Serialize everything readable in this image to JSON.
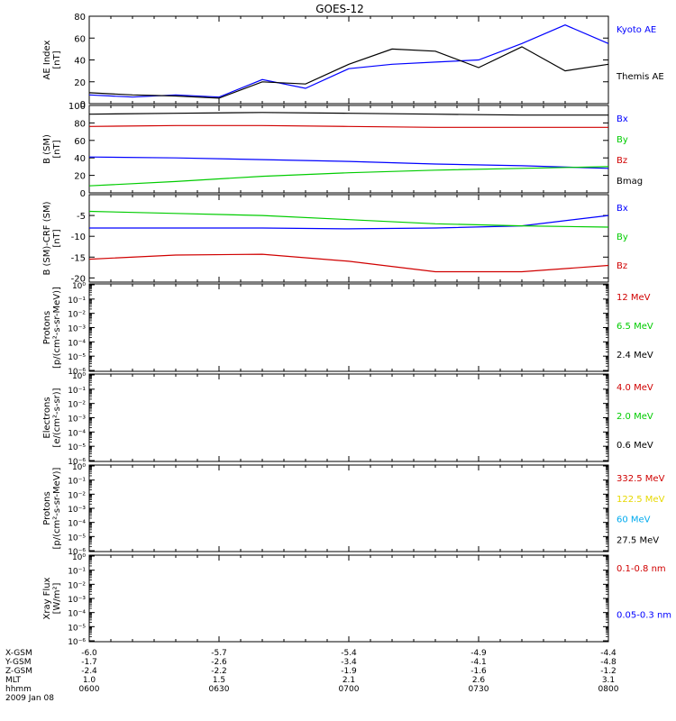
{
  "title": "GOES-12",
  "colors": {
    "black": "#000000",
    "blue": "#0000ff",
    "red": "#d00000",
    "green": "#00cc00",
    "yellow": "#e6d800",
    "cyan": "#00aaee"
  },
  "chart_data": [
    {
      "type": "line",
      "ylabel": "AE Index\n[nT]",
      "ylim": [
        0,
        80
      ],
      "yticks": [
        "0",
        "20",
        "40",
        "60",
        "80"
      ],
      "yscale": "linear",
      "x": [
        "0600",
        "0610",
        "0620",
        "0630",
        "0640",
        "0650",
        "0700",
        "0710",
        "0720",
        "0730",
        "0740",
        "0750",
        "0800"
      ],
      "series": [
        {
          "name": "Kyoto AE",
          "color": "blue",
          "values": [
            8,
            6,
            8,
            6,
            22,
            14,
            32,
            36,
            38,
            40,
            55,
            72,
            55
          ]
        },
        {
          "name": "Themis AE",
          "color": "black",
          "values": [
            10,
            8,
            7,
            5,
            20,
            18,
            36,
            50,
            48,
            33,
            52,
            30,
            36
          ]
        }
      ]
    },
    {
      "type": "line",
      "ylabel": "B (SM)\n[nT]",
      "ylim": [
        0,
        100
      ],
      "yticks": [
        "0",
        "20",
        "40",
        "60",
        "80",
        "100"
      ],
      "yscale": "linear",
      "x": [
        "0600",
        "0620",
        "0640",
        "0700",
        "0720",
        "0740",
        "0800"
      ],
      "series": [
        {
          "name": "Bx",
          "color": "blue",
          "values": [
            41,
            40,
            38,
            36,
            33,
            31,
            28
          ]
        },
        {
          "name": "By",
          "color": "green",
          "values": [
            8,
            13,
            19,
            23,
            26,
            28,
            30
          ]
        },
        {
          "name": "Bz",
          "color": "red",
          "values": [
            76,
            77,
            77,
            76,
            75,
            75,
            75
          ]
        },
        {
          "name": "Bmag",
          "color": "black",
          "values": [
            90,
            91,
            92,
            91,
            90,
            89,
            89
          ]
        }
      ]
    },
    {
      "type": "line",
      "ylabel": "B (SM)-CRF (SM)\n[nT]",
      "ylim": [
        -21,
        0
      ],
      "yticks": [
        "-20",
        "-15",
        "-10",
        "-5"
      ],
      "ytick_values": [
        -20,
        -15,
        -10,
        -5
      ],
      "yscale": "linear",
      "x": [
        "0600",
        "0620",
        "0640",
        "0700",
        "0720",
        "0740",
        "0800"
      ],
      "series": [
        {
          "name": "Bx",
          "color": "blue",
          "values": [
            -8,
            -8,
            -8,
            -8.2,
            -8,
            -7.5,
            -5
          ]
        },
        {
          "name": "By",
          "color": "green",
          "values": [
            -4,
            -4.5,
            -5,
            -6,
            -7,
            -7.5,
            -7.8
          ]
        },
        {
          "name": "Bz",
          "color": "red",
          "values": [
            -15.5,
            -14.5,
            -14.3,
            -16,
            -18.5,
            -18.5,
            -17
          ]
        }
      ]
    },
    {
      "type": "line",
      "ylabel": "Protons\n[p/(cm²-s-sr-MeV)]",
      "yscale": "log",
      "yticks": [
        "10⁻⁶",
        "10⁻⁵",
        "10⁻⁴",
        "10⁻³",
        "10⁻²",
        "10⁻¹",
        "10⁰"
      ],
      "series": [
        {
          "name": "12 MeV",
          "color": "red"
        },
        {
          "name": "6.5 MeV",
          "color": "green"
        },
        {
          "name": "2.4 MeV",
          "color": "black"
        }
      ]
    },
    {
      "type": "line",
      "ylabel": "Electrons\n[e/(cm²-s-sr)]",
      "yscale": "log",
      "yticks": [
        "10⁻⁶",
        "10⁻⁵",
        "10⁻⁴",
        "10⁻³",
        "10⁻²",
        "10⁻¹",
        "10⁰"
      ],
      "series": [
        {
          "name": "4.0 MeV",
          "color": "red"
        },
        {
          "name": "2.0 MeV",
          "color": "green"
        },
        {
          "name": "0.6 MeV",
          "color": "black"
        }
      ]
    },
    {
      "type": "line",
      "ylabel": "Protons\n[p/(cm²-s-sr-MeV)]",
      "yscale": "log",
      "yticks": [
        "10⁻⁶",
        "10⁻⁵",
        "10⁻⁴",
        "10⁻³",
        "10⁻²",
        "10⁻¹",
        "10⁰"
      ],
      "series": [
        {
          "name": "332.5 MeV",
          "color": "red"
        },
        {
          "name": "122.5 MeV",
          "color": "yellow"
        },
        {
          "name": "60 MeV",
          "color": "cyan"
        },
        {
          "name": "27.5 MeV",
          "color": "black"
        }
      ]
    },
    {
      "type": "line",
      "ylabel": "Xray Flux\n[W/m²]",
      "yscale": "log",
      "yticks": [
        "10⁻⁶",
        "10⁻⁵",
        "10⁻⁴",
        "10⁻³",
        "10⁻²",
        "10⁻¹",
        "10⁰"
      ],
      "series": [
        {
          "name": "0.1-0.8 nm",
          "color": "red"
        },
        {
          "name": "0.05-0.3 nm",
          "color": "blue"
        }
      ]
    }
  ],
  "xaxis": {
    "rows": [
      {
        "label": "X-GSM",
        "values": [
          "-6.0",
          "-5.7",
          "-5.4",
          "-4.9",
          "-4.4"
        ]
      },
      {
        "label": "Y-GSM",
        "values": [
          "-1.7",
          "-2.6",
          "-3.4",
          "-4.1",
          "-4.8"
        ]
      },
      {
        "label": "Z-GSM",
        "values": [
          "-2.4",
          "-2.2",
          "-1.9",
          "-1.6",
          "-1.2"
        ]
      },
      {
        "label": "MLT",
        "values": [
          "1.0",
          "1.5",
          "2.1",
          "2.6",
          "3.1"
        ]
      },
      {
        "label": "hhmm",
        "values": [
          "0600",
          "0630",
          "0700",
          "0730",
          "0800"
        ]
      }
    ],
    "date": "2009 Jan 08"
  }
}
